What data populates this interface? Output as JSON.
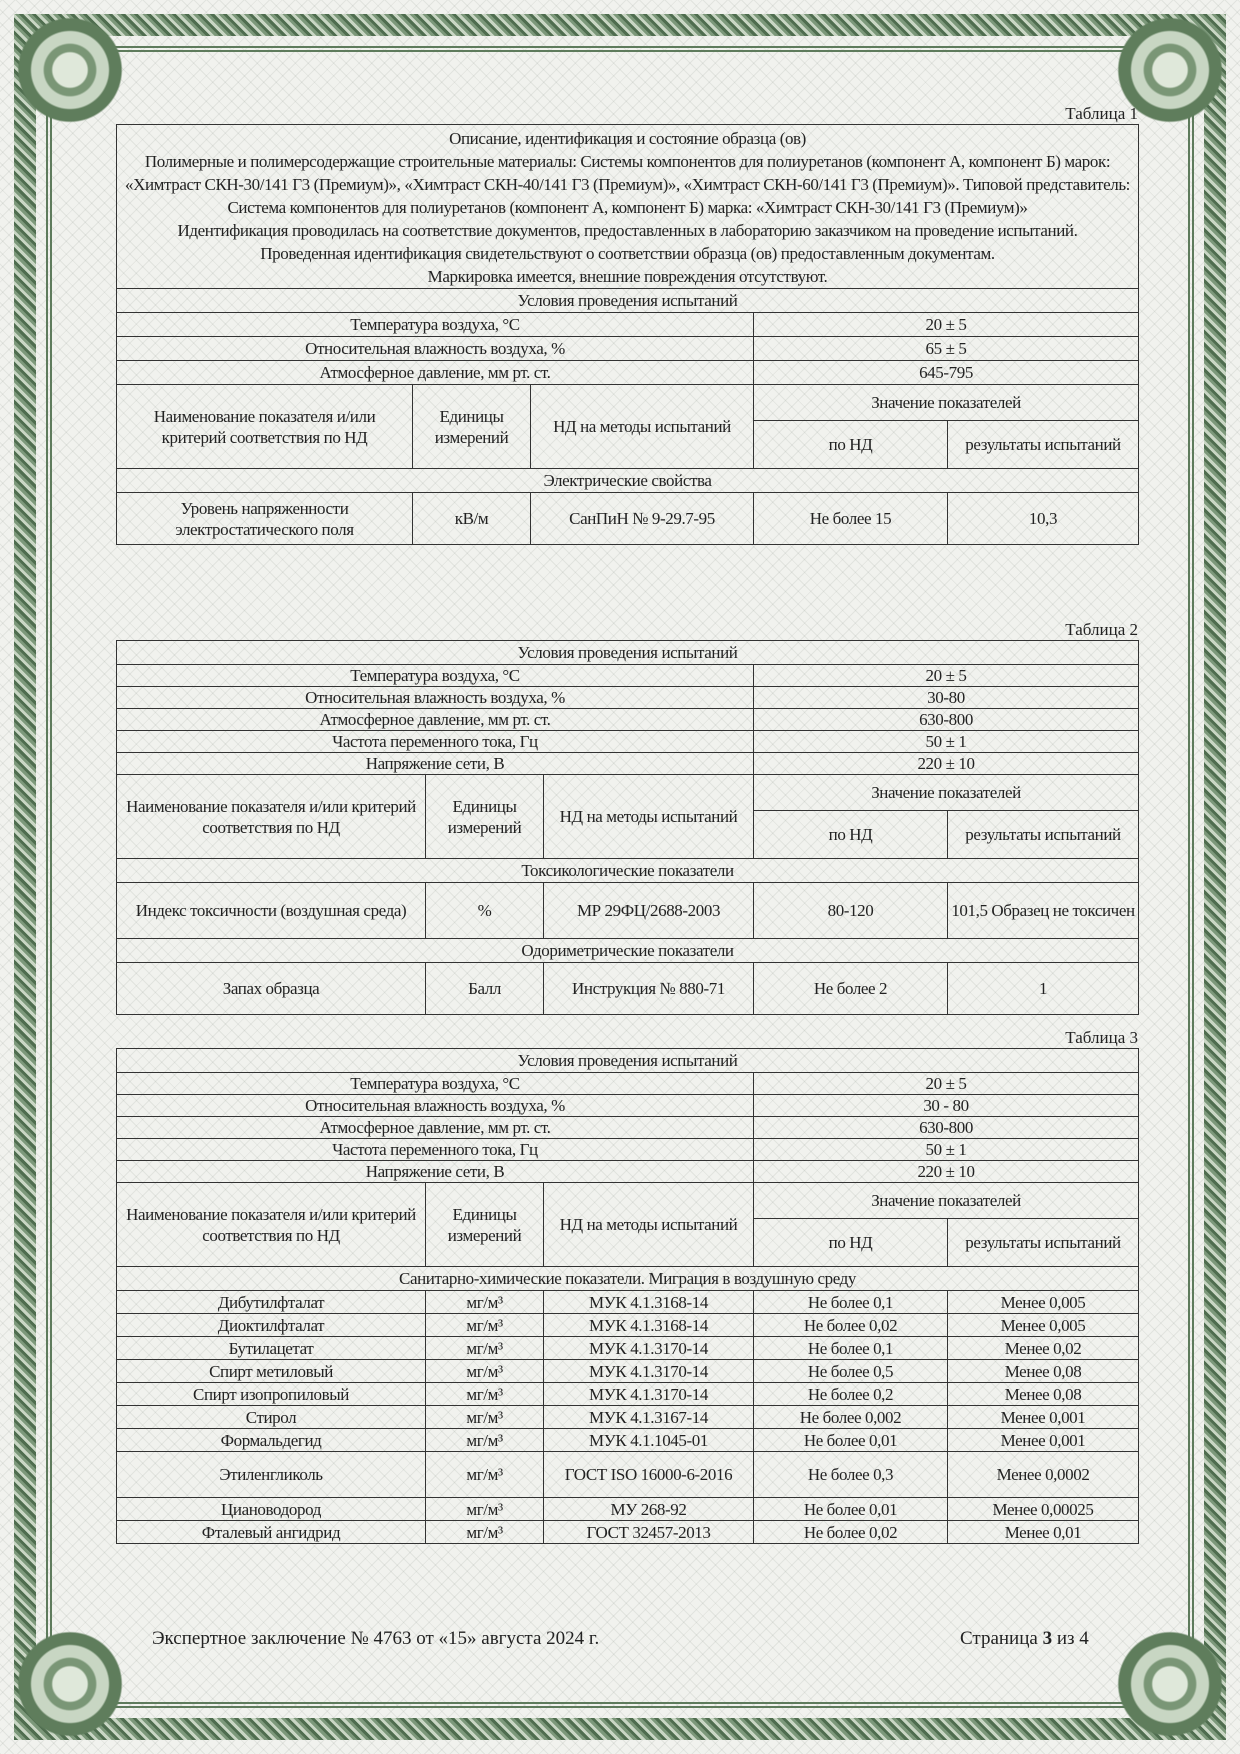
{
  "tables": [
    {
      "label": "Таблица 1",
      "description": [
        "Описание, идентификация и состояние образца (ов)",
        "Полимерные и полимерсодержащие строительные материалы:  Системы компонентов для полиуретанов (компонент А, компонент Б) марок: «Химтраст СКН-30/141 Г3 (Премиум)», «Химтраст СКН-40/141 Г3 (Премиум)», «Химтраст СКН-60/141 Г3 (Премиум)». Типовой представитель: Система компонентов для полиуретанов (компонент А, компонент Б) марка: «Химтраст СКН-30/141 Г3 (Премиум)»",
        "Идентификация проводилась на соответствие документов, предоставленных в лабораторию заказчиком на проведение испытаний.",
        "Проведенная идентификация свидетельствуют о соответствии образца (ов) предоставленным документам.",
        "Маркировка имеется, внешние повреждения отсутствуют."
      ],
      "conditions_title": "Условия проведения испытаний",
      "conditions": [
        [
          "Температура воздуха, °С",
          "20 ± 5"
        ],
        [
          "Относительная влажность воздуха, %",
          "65 ± 5"
        ],
        [
          "Атмосферное давление, мм рт. ст.",
          "645-795"
        ]
      ],
      "headers": {
        "name": "Наименование показателя и/или критерий соответствия по НД",
        "units": "Единицы измерений",
        "method": "НД на методы испытаний",
        "values": "Значение показателей",
        "by_nd": "по НД",
        "results": "результаты испытаний"
      },
      "sections": [
        {
          "title": "Электрические свойства",
          "rows": [
            [
              "Уровень напряженности электростатического поля",
              "кВ/м",
              "СанПиН № 9-29.7-95",
              "Не более 15",
              "10,3"
            ]
          ]
        }
      ]
    },
    {
      "label": "Таблица 2",
      "conditions_title": "Условия проведения испытаний",
      "conditions": [
        [
          "Температура воздуха, °С",
          "20 ± 5"
        ],
        [
          "Относительная влажность воздуха, %",
          "30-80"
        ],
        [
          "Атмосферное давление, мм рт. ст.",
          "630-800"
        ],
        [
          "Частота переменного тока, Гц",
          "50 ± 1"
        ],
        [
          "Напряжение сети, В",
          "220 ± 10"
        ]
      ],
      "headers": {
        "name": "Наименование показателя и/или критерий соответствия по НД",
        "units": "Единицы измерений",
        "method": "НД на методы испытаний",
        "values": "Значение показателей",
        "by_nd": "по НД",
        "results": "результаты испытаний"
      },
      "sections": [
        {
          "title": "Токсикологические показатели",
          "rows": [
            [
              "Индекс токсичности (воздушная среда)",
              "%",
              "МР 29ФЦ/2688-2003",
              "80-120",
              "101,5 Образец не токсичен"
            ]
          ]
        },
        {
          "title": "Одориметрические показатели",
          "rows": [
            [
              "Запах образца",
              "Балл",
              "Инструкция № 880-71",
              "Не более 2",
              "1"
            ]
          ]
        }
      ]
    },
    {
      "label": "Таблица 3",
      "conditions_title": "Условия проведения испытаний",
      "conditions": [
        [
          "Температура воздуха, °С",
          "20 ± 5"
        ],
        [
          "Относительная влажность воздуха, %",
          "30 - 80"
        ],
        [
          "Атмосферное давление, мм рт. ст.",
          "630-800"
        ],
        [
          "Частота переменного тока, Гц",
          "50 ± 1"
        ],
        [
          "Напряжение сети, В",
          "220 ± 10"
        ]
      ],
      "headers": {
        "name": "Наименование показателя и/или критерий соответствия по НД",
        "units": "Единицы измерений",
        "method": "НД на методы испытаний",
        "values": "Значение показателей",
        "by_nd": "по НД",
        "results": "результаты испытаний"
      },
      "sections": [
        {
          "title": "Санитарно-химические показатели. Миграция в воздушную среду",
          "rows": [
            [
              "Дибутилфталат",
              "мг/м³",
              "МУК 4.1.3168-14",
              "Не более 0,1",
              "Менее 0,005"
            ],
            [
              "Диоктилфталат",
              "мг/м³",
              "МУК 4.1.3168-14",
              "Не более 0,02",
              "Менее 0,005"
            ],
            [
              "Бутилацетат",
              "мг/м³",
              "МУК 4.1.3170-14",
              "Не более 0,1",
              "Менее 0,02"
            ],
            [
              "Спирт метиловый",
              "мг/м³",
              "МУК 4.1.3170-14",
              "Не более 0,5",
              "Менее 0,08"
            ],
            [
              "Спирт изопропиловый",
              "мг/м³",
              "МУК 4.1.3170-14",
              "Не более 0,2",
              "Менее 0,08"
            ],
            [
              "Стирол",
              "мг/м³",
              "МУК 4.1.3167-14",
              "Не более 0,002",
              "Менее 0,001"
            ],
            [
              "Формальдегид",
              "мг/м³",
              "МУК 4.1.1045-01",
              "Не более 0,01",
              "Менее 0,001"
            ],
            [
              "Этиленгликоль",
              "мг/м³",
              "ГОСТ ISO 16000-6-2016",
              "Не более 0,3",
              "Менее 0,0002"
            ],
            [
              "Циановодород",
              "мг/м³",
              "МУ 268-92",
              "Не более 0,01",
              "Менее 0,00025"
            ],
            [
              "Фталевый ангидрид",
              "мг/м³",
              "ГОСТ 32457-2013",
              "Не более 0,02",
              "Менее 0,01"
            ]
          ]
        }
      ]
    }
  ],
  "footer": {
    "conclusion": "Экспертное заключение № 4763 от «15» августа 2024 г.",
    "page_word": "Страница",
    "page_num": "3",
    "of_word": "из",
    "page_total": "4"
  },
  "colors": {
    "frame": "#6f8a6c",
    "text": "#222222"
  }
}
